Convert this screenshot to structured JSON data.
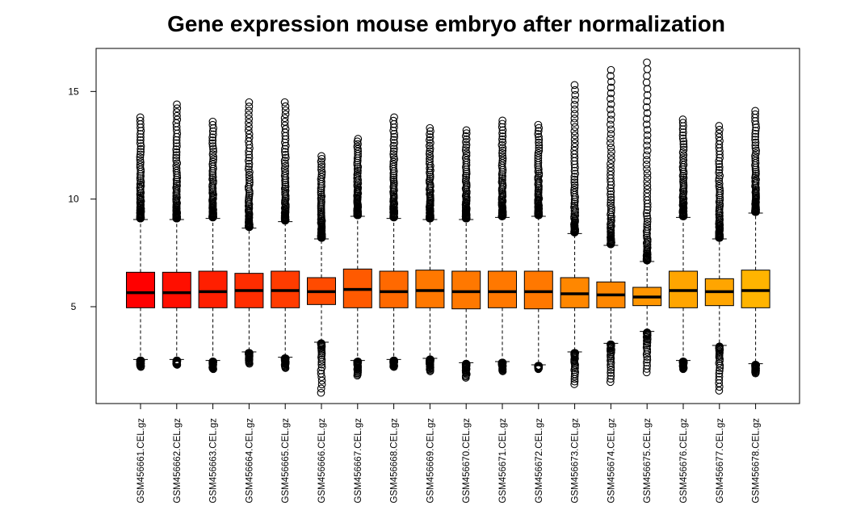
{
  "chart_data": {
    "type": "boxplot",
    "title": "Gene expression mouse embryo after normalization",
    "xlabel": "",
    "ylabel": "",
    "ylim": [
      0.5,
      17.0
    ],
    "yticks": [
      5,
      10,
      15
    ],
    "grid": false,
    "legend": "none",
    "categories": [
      "GSM456661.CEL.gz",
      "GSM456662.CEL.gz",
      "GSM456663.CEL.gz",
      "GSM456664.CEL.gz",
      "GSM456665.CEL.gz",
      "GSM456666.CEL.gz",
      "GSM456667.CEL.gz",
      "GSM456668.CEL.gz",
      "GSM456669.CEL.gz",
      "GSM456670.CEL.gz",
      "GSM456671.CEL.gz",
      "GSM456672.CEL.gz",
      "GSM456673.CEL.gz",
      "GSM456674.CEL.gz",
      "GSM456675.CEL.gz",
      "GSM456676.CEL.gz",
      "GSM456677.CEL.gz",
      "GSM456678.CEL.gz"
    ],
    "colors": [
      "#ff0000",
      "#ff0f00",
      "#ff1f00",
      "#ff2d00",
      "#ff3c00",
      "#ff4b00",
      "#ff5a00",
      "#ff6900",
      "#ff7800",
      "#ff7800",
      "#ff7800",
      "#ff7800",
      "#ff8700",
      "#ff8700",
      "#ff9600",
      "#ffa500",
      "#ffa500",
      "#ffb400"
    ],
    "boxes": [
      {
        "q1": 4.95,
        "median": 5.65,
        "q3": 6.6,
        "lower_whisker": 2.55,
        "upper_whisker": 9.05,
        "outlier_max": 13.8,
        "outlier_min": 2.2
      },
      {
        "q1": 4.95,
        "median": 5.65,
        "q3": 6.6,
        "lower_whisker": 2.55,
        "upper_whisker": 9.05,
        "outlier_max": 14.4,
        "outlier_min": 2.3
      },
      {
        "q1": 4.95,
        "median": 5.7,
        "q3": 6.65,
        "lower_whisker": 2.5,
        "upper_whisker": 9.1,
        "outlier_max": 13.6,
        "outlier_min": 2.1
      },
      {
        "q1": 4.95,
        "median": 5.75,
        "q3": 6.55,
        "lower_whisker": 2.9,
        "upper_whisker": 8.65,
        "outlier_max": 14.5,
        "outlier_min": 2.35
      },
      {
        "q1": 4.95,
        "median": 5.75,
        "q3": 6.65,
        "lower_whisker": 2.65,
        "upper_whisker": 8.95,
        "outlier_max": 14.5,
        "outlier_min": 2.15
      },
      {
        "q1": 5.1,
        "median": 5.7,
        "q3": 6.35,
        "lower_whisker": 3.35,
        "upper_whisker": 8.15,
        "outlier_max": 12.0,
        "outlier_min": 1.0
      },
      {
        "q1": 4.95,
        "median": 5.8,
        "q3": 6.75,
        "lower_whisker": 2.5,
        "upper_whisker": 9.2,
        "outlier_max": 12.8,
        "outlier_min": 1.8
      },
      {
        "q1": 4.95,
        "median": 5.7,
        "q3": 6.65,
        "lower_whisker": 2.55,
        "upper_whisker": 9.1,
        "outlier_max": 13.8,
        "outlier_min": 2.2
      },
      {
        "q1": 4.95,
        "median": 5.75,
        "q3": 6.7,
        "lower_whisker": 2.6,
        "upper_whisker": 9.05,
        "outlier_max": 13.3,
        "outlier_min": 2.0
      },
      {
        "q1": 4.9,
        "median": 5.7,
        "q3": 6.65,
        "lower_whisker": 2.4,
        "upper_whisker": 9.05,
        "outlier_max": 13.2,
        "outlier_min": 1.7
      },
      {
        "q1": 4.95,
        "median": 5.7,
        "q3": 6.65,
        "lower_whisker": 2.45,
        "upper_whisker": 9.15,
        "outlier_max": 13.65,
        "outlier_min": 2.0
      },
      {
        "q1": 4.9,
        "median": 5.7,
        "q3": 6.65,
        "lower_whisker": 2.3,
        "upper_whisker": 9.2,
        "outlier_max": 13.45,
        "outlier_min": 2.1
      },
      {
        "q1": 4.95,
        "median": 5.6,
        "q3": 6.35,
        "lower_whisker": 2.9,
        "upper_whisker": 8.4,
        "outlier_max": 15.3,
        "outlier_min": 1.4
      },
      {
        "q1": 4.95,
        "median": 5.55,
        "q3": 6.15,
        "lower_whisker": 3.3,
        "upper_whisker": 7.85,
        "outlier_max": 16.0,
        "outlier_min": 1.5
      },
      {
        "q1": 5.05,
        "median": 5.45,
        "q3": 5.9,
        "lower_whisker": 3.85,
        "upper_whisker": 7.1,
        "outlier_max": 16.35,
        "outlier_min": 1.95
      },
      {
        "q1": 4.95,
        "median": 5.75,
        "q3": 6.65,
        "lower_whisker": 2.5,
        "upper_whisker": 9.15,
        "outlier_max": 13.7,
        "outlier_min": 2.1
      },
      {
        "q1": 5.05,
        "median": 5.7,
        "q3": 6.3,
        "lower_whisker": 3.2,
        "upper_whisker": 8.15,
        "outlier_max": 13.4,
        "outlier_min": 1.1
      },
      {
        "q1": 4.95,
        "median": 5.75,
        "q3": 6.7,
        "lower_whisker": 2.35,
        "upper_whisker": 9.35,
        "outlier_max": 14.1,
        "outlier_min": 1.9
      }
    ]
  }
}
